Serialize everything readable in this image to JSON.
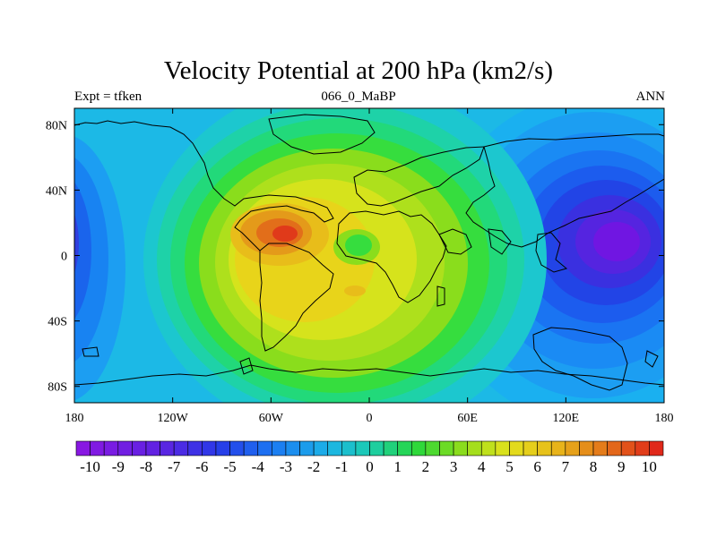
{
  "title": "Velocity Potential at 200 hPa (km2/s)",
  "left_label": "Expt = tfken",
  "center_label": "066_0_MaBP",
  "right_label": "ANN",
  "map": {
    "x_ticks": [
      {
        "lon": -180,
        "label": "180"
      },
      {
        "lon": -120,
        "label": "120W"
      },
      {
        "lon": -60,
        "label": "60W"
      },
      {
        "lon": 0,
        "label": "0"
      },
      {
        "lon": 60,
        "label": "60E"
      },
      {
        "lon": 120,
        "label": "120E"
      },
      {
        "lon": 180,
        "label": "180"
      }
    ],
    "y_ticks": [
      {
        "lat": 80,
        "label": "80N"
      },
      {
        "lat": 40,
        "label": "40N"
      },
      {
        "lat": 0,
        "label": "0"
      },
      {
        "lat": -40,
        "label": "40S"
      },
      {
        "lat": -80,
        "label": "80S"
      }
    ]
  },
  "colorbar": {
    "min": -10.5,
    "max": 10.5,
    "step": 0.5,
    "labels": [
      "-10",
      "-9",
      "-8",
      "-7",
      "-6",
      "-5",
      "-4",
      "-3",
      "-2",
      "-1",
      "0",
      "1",
      "2",
      "3",
      "4",
      "5",
      "6",
      "7",
      "8",
      "9",
      "10"
    ]
  }
}
